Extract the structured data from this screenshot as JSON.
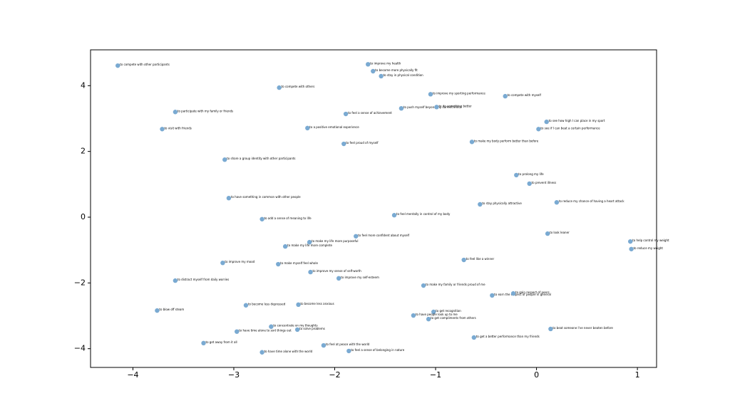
{
  "chart_data": {
    "type": "scatter",
    "color": "#7aaad2",
    "xlim": [
      -4.42,
      1.19
    ],
    "ylim": [
      -4.57,
      5.09
    ],
    "xticks": [
      {
        "value": -4,
        "label": "−4"
      },
      {
        "value": -3,
        "label": "−3"
      },
      {
        "value": -2,
        "label": "−2"
      },
      {
        "value": -1,
        "label": "−1"
      },
      0,
      1
    ],
    "yticks": [
      {
        "value": -4,
        "label": "−4"
      },
      {
        "value": -2,
        "label": "−2"
      },
      0,
      2,
      4
    ],
    "x": [
      -4.15,
      -1.67,
      -1.62,
      -1.54,
      -2.55,
      -1.05,
      -0.31,
      -1.34,
      -0.99,
      -3.58,
      -1.89,
      0.1,
      -3.71,
      -2.27,
      0.02,
      -1.91,
      -0.64,
      -3.09,
      -0.2,
      -0.07,
      -3.05,
      -0.56,
      0.2,
      -1.41,
      -2.72,
      0.11,
      -1.79,
      0.93,
      -2.25,
      -2.49,
      0.94,
      -0.72,
      -3.11,
      -2.56,
      -2.24,
      -1.96,
      -3.58,
      -1.12,
      -0.44,
      -0.23,
      -2.88,
      -2.36,
      -3.76,
      -1.02,
      -1.22,
      -1.07,
      -2.63,
      -2.37,
      -2.97,
      0.14,
      -0.62,
      -3.3,
      -2.11,
      -1.86,
      -2.72
    ],
    "values": [
      4.61,
      4.65,
      4.44,
      4.29,
      3.94,
      3.74,
      3.68,
      3.31,
      3.35,
      3.2,
      3.14,
      2.9,
      2.68,
      2.71,
      2.68,
      2.23,
      2.29,
      1.75,
      1.28,
      1.02,
      0.58,
      0.39,
      0.45,
      0.06,
      -0.06,
      -0.5,
      -0.58,
      -0.74,
      -0.76,
      -0.89,
      -0.97,
      -1.3,
      -1.39,
      -1.43,
      -1.67,
      -1.86,
      -1.93,
      -2.08,
      -2.38,
      -2.32,
      -2.68,
      -2.66,
      -2.84,
      -2.88,
      -2.99,
      -3.1,
      -3.33,
      -3.42,
      -3.48,
      -3.4,
      -3.66,
      -3.83,
      -3.9,
      -4.07,
      -4.11
    ],
    "labels": [
      "to compete with other participants",
      "to improve my health",
      "to become more physically fit",
      "to stay in physical condition",
      "to compete with others",
      "to improve my sporting performance",
      "to compete with myself",
      "to push myself beyond my current limits",
      "to do something better",
      "to participate with my family or friends",
      "to feel a sense of achievement",
      "to see how high I can place in my sport",
      "to visit with friends",
      "to a positive emotional experience",
      "to see if I can beat a certain performance",
      "to feel proud of myself",
      "to make my body perform better than before",
      "to share a group identity with other participants",
      "to prolong my life",
      "to prevent illness",
      "to have something in common with other people",
      "to stay physically attractive",
      "to reduce my chance of having a heart attack",
      "to feel mentally in control of my body",
      "to add a sense of meaning to life",
      "to look leaner",
      "to feel more confident about myself",
      "to help control my weight",
      "to make my life more purposeful",
      "to make my life more complete",
      "to reduce my weight",
      "to feel like a winner",
      "to improve my mood",
      "to make myself feel whole",
      "to improve my sense of self-worth",
      "to improve my self-esteem",
      "to distract myself from daily worries",
      "to make my family or friends proud of me",
      "to earn the respect of people in general",
      "to gain respect of peers",
      "to become less depressed",
      "to become less anxious",
      "to blow off steam",
      "to get recognition",
      "to have people look up to me",
      "to get compliments from others",
      "to concentrate on my thoughts",
      "to solve problems",
      "to have time alone to sort things out",
      "to beat someone I've never beaten before",
      "to get a better performance than my friends",
      "to get away from it all",
      "to feel at peace with the world",
      "to feel a sense of belonging in nature",
      "to have time alone with the world"
    ]
  }
}
